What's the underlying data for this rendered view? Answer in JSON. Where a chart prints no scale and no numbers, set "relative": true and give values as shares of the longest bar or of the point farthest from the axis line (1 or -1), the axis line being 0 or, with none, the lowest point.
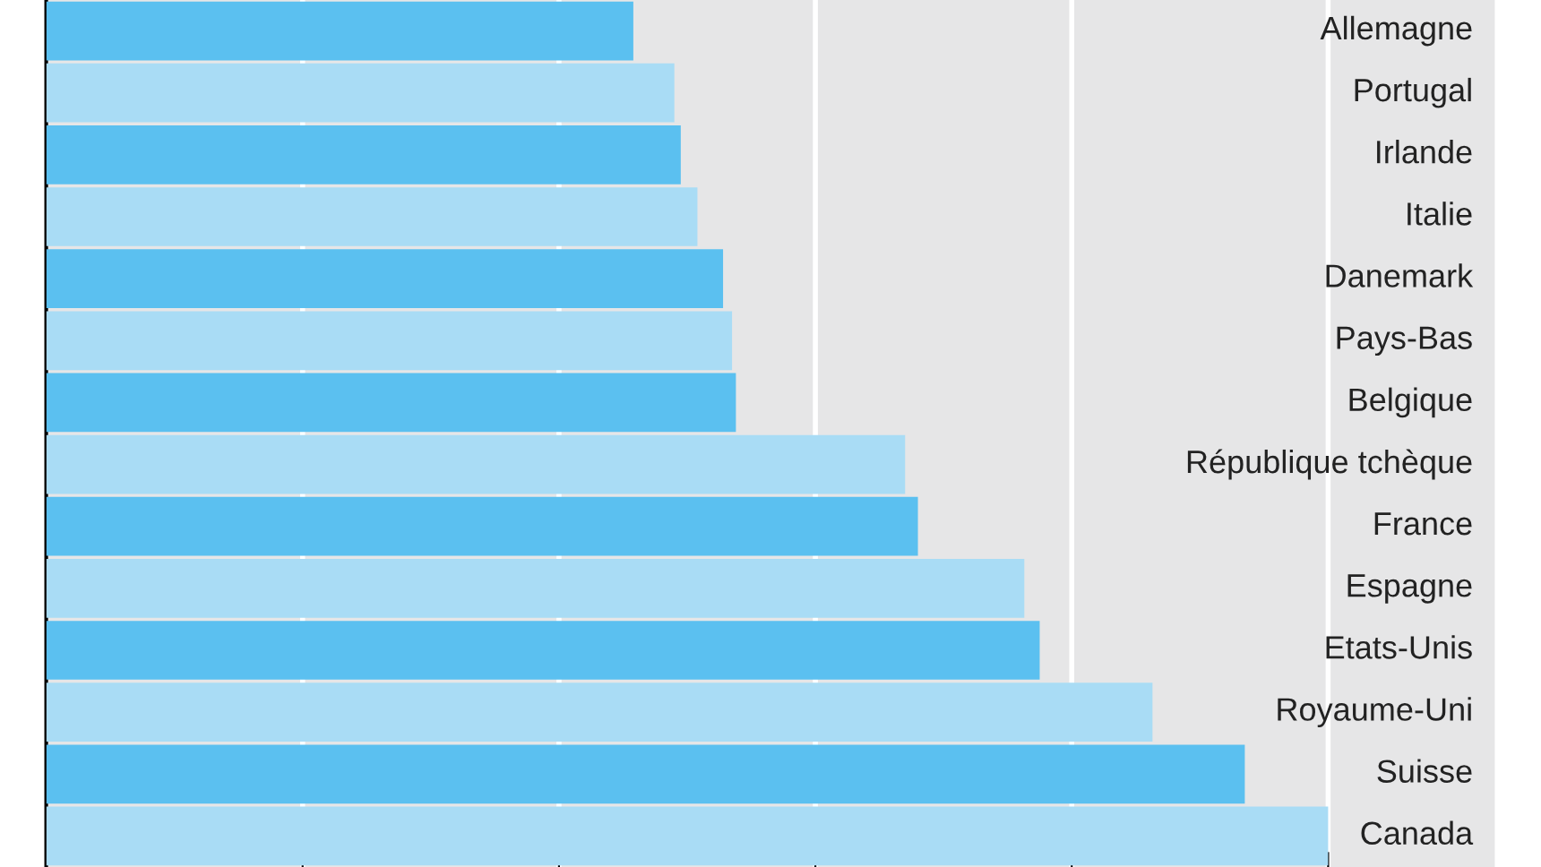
{
  "chart_data": {
    "type": "bar",
    "orientation": "horizontal",
    "relative": true,
    "grid": "x",
    "categories": [
      "Allemagne",
      "Portugal",
      "Irlande",
      "Italie",
      "Danemark",
      "Pays-Bas",
      "Belgique",
      "République tchèque",
      "France",
      "Espagne",
      "Etats-Unis",
      "Royaume-Uni",
      "Suisse",
      "Canada"
    ],
    "values": [
      0.458,
      0.49,
      0.495,
      0.508,
      0.528,
      0.535,
      0.538,
      0.67,
      0.68,
      0.763,
      0.775,
      0.863,
      0.935,
      1.0
    ],
    "colors": [
      "#5bc0f0",
      "#a9dcf5",
      "#5bc0f0",
      "#a9dcf5",
      "#5bc0f0",
      "#a9dcf5",
      "#5bc0f0",
      "#a9dcf5",
      "#5bc0f0",
      "#a9dcf5",
      "#5bc0f0",
      "#a9dcf5",
      "#5bc0f0",
      "#a9dcf5"
    ]
  }
}
